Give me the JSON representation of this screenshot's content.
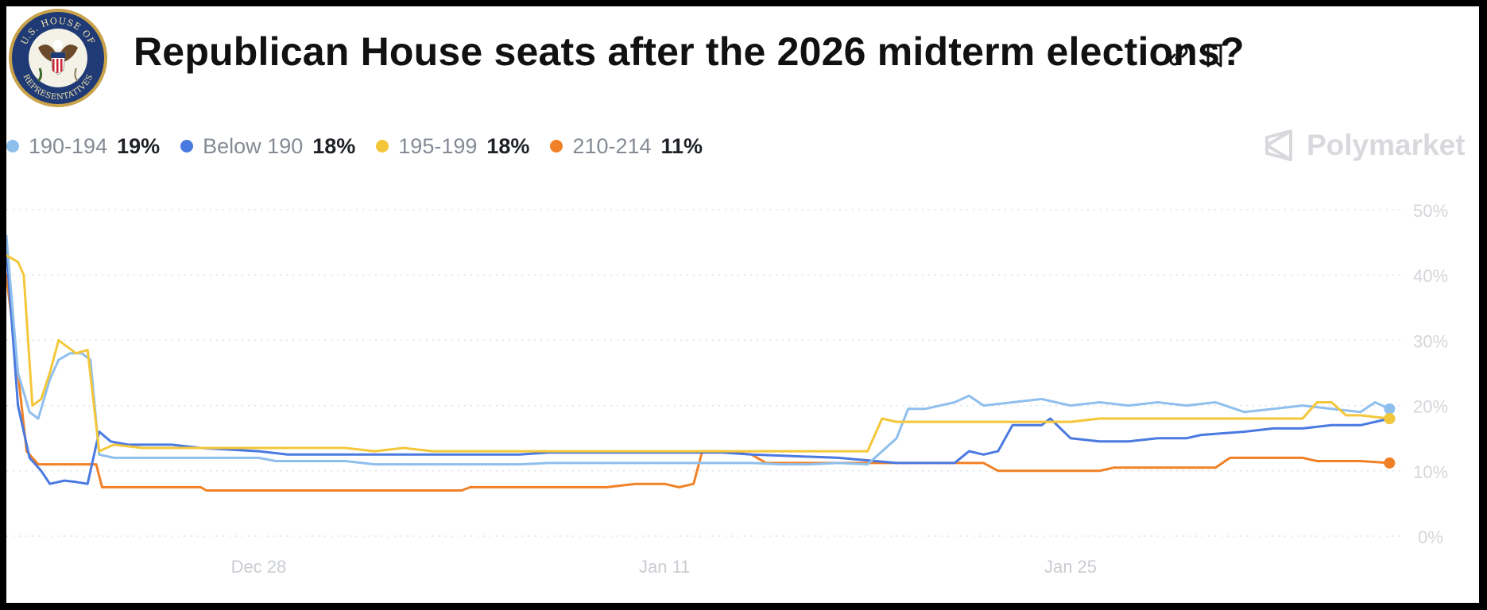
{
  "header": {
    "title": "Republican House seats after the 2026 midterm elections?",
    "logo_icon": "house-of-representatives-seal-icon",
    "logo_text_top": "U.S. HOUSE OF",
    "logo_text_bottom": "REPRESENTATIVES",
    "actions": [
      {
        "name": "link-icon"
      },
      {
        "name": "bookmark-icon"
      }
    ]
  },
  "brand": {
    "name": "Polymarket",
    "icon": "polymarket-logo-icon"
  },
  "legend": [
    {
      "label": "190-194",
      "value": "19%",
      "color": "#8fbfec"
    },
    {
      "label": "Below 190",
      "value": "18%",
      "color": "#4a79e0"
    },
    {
      "label": "195-199",
      "value": "18%",
      "color": "#f4c73a"
    },
    {
      "label": "210-214",
      "value": "11%",
      "color": "#f08127"
    }
  ],
  "chart_data": {
    "type": "line",
    "title": "Republican House seats after the 2026 midterm elections?",
    "xlabel": "",
    "ylabel": "",
    "ylim": [
      0,
      50
    ],
    "y_ticks": [
      "0%",
      "10%",
      "20%",
      "30%",
      "40%",
      "50%"
    ],
    "y_tick_values": [
      0,
      10,
      20,
      30,
      40,
      50
    ],
    "x_ticks": [
      {
        "label": "Dec 28",
        "day": 0
      },
      {
        "label": "Jan 11",
        "day": 14
      },
      {
        "label": "Jan 25",
        "day": 28
      }
    ],
    "xlim": [
      -8.7,
      39.1
    ],
    "grid": true,
    "series": [
      {
        "name": "190-194",
        "color": "#8fbfec",
        "final": "19%",
        "points": [
          [
            -8.7,
            46
          ],
          [
            -8.3,
            25
          ],
          [
            -7.9,
            19
          ],
          [
            -7.6,
            18
          ],
          [
            -7.2,
            24
          ],
          [
            -6.9,
            27
          ],
          [
            -6.5,
            28
          ],
          [
            -6.1,
            28
          ],
          [
            -5.8,
            27
          ],
          [
            -5.5,
            12.5
          ],
          [
            -5,
            12
          ],
          [
            -3,
            12
          ],
          [
            0,
            12
          ],
          [
            0.6,
            11.5
          ],
          [
            3,
            11.5
          ],
          [
            4,
            11
          ],
          [
            6,
            11
          ],
          [
            9,
            11
          ],
          [
            10,
            11.2
          ],
          [
            13,
            11.2
          ],
          [
            16,
            11.2
          ],
          [
            17,
            11.2
          ],
          [
            18,
            11
          ],
          [
            19,
            11
          ],
          [
            20,
            11.2
          ],
          [
            21,
            11
          ],
          [
            22,
            15
          ],
          [
            22.4,
            19.5
          ],
          [
            23,
            19.5
          ],
          [
            24,
            20.5
          ],
          [
            24.5,
            21.5
          ],
          [
            25,
            20
          ],
          [
            26,
            20.5
          ],
          [
            27,
            21
          ],
          [
            28,
            20
          ],
          [
            29,
            20.5
          ],
          [
            30,
            20
          ],
          [
            31,
            20.5
          ],
          [
            32,
            20
          ],
          [
            33,
            20.5
          ],
          [
            34,
            19
          ],
          [
            35,
            19.5
          ],
          [
            36,
            20
          ],
          [
            37,
            19.5
          ],
          [
            38,
            19
          ],
          [
            38.5,
            20.5
          ],
          [
            39,
            19.5
          ]
        ]
      },
      {
        "name": "Below 190",
        "color": "#4a79e0",
        "final": "18%",
        "points": [
          [
            -8.7,
            44
          ],
          [
            -8.3,
            20
          ],
          [
            -7.9,
            12
          ],
          [
            -7.5,
            10
          ],
          [
            -7.2,
            8
          ],
          [
            -6.7,
            8.5
          ],
          [
            -6.3,
            8.3
          ],
          [
            -5.9,
            8
          ],
          [
            -5.5,
            16
          ],
          [
            -5.1,
            14.5
          ],
          [
            -4.5,
            14
          ],
          [
            -3,
            14
          ],
          [
            -2,
            13.5
          ],
          [
            0,
            13
          ],
          [
            1,
            12.5
          ],
          [
            3,
            12.5
          ],
          [
            6,
            12.5
          ],
          [
            9,
            12.5
          ],
          [
            10,
            12.8
          ],
          [
            13,
            12.8
          ],
          [
            16,
            12.8
          ],
          [
            17,
            12.5
          ],
          [
            20,
            12
          ],
          [
            22,
            11.2
          ],
          [
            23,
            11.2
          ],
          [
            24,
            11.2
          ],
          [
            24.5,
            13
          ],
          [
            25,
            12.5
          ],
          [
            25.5,
            13
          ],
          [
            26,
            17
          ],
          [
            27,
            17
          ],
          [
            27.3,
            18
          ],
          [
            28,
            15
          ],
          [
            29,
            14.5
          ],
          [
            30,
            14.5
          ],
          [
            31,
            15
          ],
          [
            32,
            15
          ],
          [
            32.5,
            15.5
          ],
          [
            34,
            16
          ],
          [
            35,
            16.5
          ],
          [
            36,
            16.5
          ],
          [
            37,
            17
          ],
          [
            38,
            17
          ],
          [
            39,
            18
          ]
        ]
      },
      {
        "name": "195-199",
        "color": "#f4c73a",
        "final": "18%",
        "points": [
          [
            -8.7,
            43
          ],
          [
            -8.3,
            42
          ],
          [
            -8.1,
            40
          ],
          [
            -7.8,
            20
          ],
          [
            -7.5,
            21
          ],
          [
            -7.2,
            25
          ],
          [
            -6.9,
            30
          ],
          [
            -6.6,
            29
          ],
          [
            -6.3,
            28
          ],
          [
            -5.9,
            28.5
          ],
          [
            -5.5,
            13
          ],
          [
            -5,
            14
          ],
          [
            -4,
            13.5
          ],
          [
            -3,
            13.5
          ],
          [
            0,
            13.5
          ],
          [
            3,
            13.5
          ],
          [
            4,
            13
          ],
          [
            5,
            13.5
          ],
          [
            6,
            13
          ],
          [
            9,
            13
          ],
          [
            13,
            13
          ],
          [
            16,
            13
          ],
          [
            17,
            13
          ],
          [
            18,
            13
          ],
          [
            19,
            13
          ],
          [
            20,
            13
          ],
          [
            21,
            13
          ],
          [
            21.5,
            18
          ],
          [
            22,
            17.5
          ],
          [
            23,
            17.5
          ],
          [
            24,
            17.5
          ],
          [
            26,
            17.5
          ],
          [
            28,
            17.5
          ],
          [
            29,
            18
          ],
          [
            31,
            18
          ],
          [
            33,
            18
          ],
          [
            34,
            18
          ],
          [
            35,
            18
          ],
          [
            36,
            18
          ],
          [
            36.5,
            20.5
          ],
          [
            37,
            20.5
          ],
          [
            37.5,
            18.5
          ],
          [
            38,
            18.5
          ],
          [
            39,
            18
          ]
        ]
      },
      {
        "name": "210-214",
        "color": "#f08127",
        "final": "11%",
        "points": [
          [
            -8.7,
            40
          ],
          [
            -8.3,
            25
          ],
          [
            -8,
            13
          ],
          [
            -7.6,
            11
          ],
          [
            -7,
            11
          ],
          [
            -6,
            11
          ],
          [
            -5.6,
            11
          ],
          [
            -5.4,
            7.5
          ],
          [
            -3,
            7.5
          ],
          [
            -2,
            7.5
          ],
          [
            -1.8,
            7
          ],
          [
            0,
            7
          ],
          [
            3,
            7
          ],
          [
            6,
            7
          ],
          [
            7,
            7
          ],
          [
            7.3,
            7.5
          ],
          [
            10,
            7.5
          ],
          [
            12,
            7.5
          ],
          [
            13,
            8
          ],
          [
            14,
            8
          ],
          [
            14.5,
            7.5
          ],
          [
            15,
            8
          ],
          [
            15.3,
            13
          ],
          [
            16,
            13
          ],
          [
            17,
            12.5
          ],
          [
            17.5,
            11.2
          ],
          [
            19,
            11.2
          ],
          [
            21,
            11.2
          ],
          [
            23,
            11.2
          ],
          [
            25,
            11.2
          ],
          [
            25.5,
            10
          ],
          [
            27,
            10
          ],
          [
            29,
            10
          ],
          [
            29.5,
            10.5
          ],
          [
            32,
            10.5
          ],
          [
            33,
            10.5
          ],
          [
            33.5,
            12
          ],
          [
            35,
            12
          ],
          [
            36,
            12
          ],
          [
            36.5,
            11.5
          ],
          [
            38,
            11.5
          ],
          [
            39,
            11.2
          ]
        ]
      }
    ]
  }
}
